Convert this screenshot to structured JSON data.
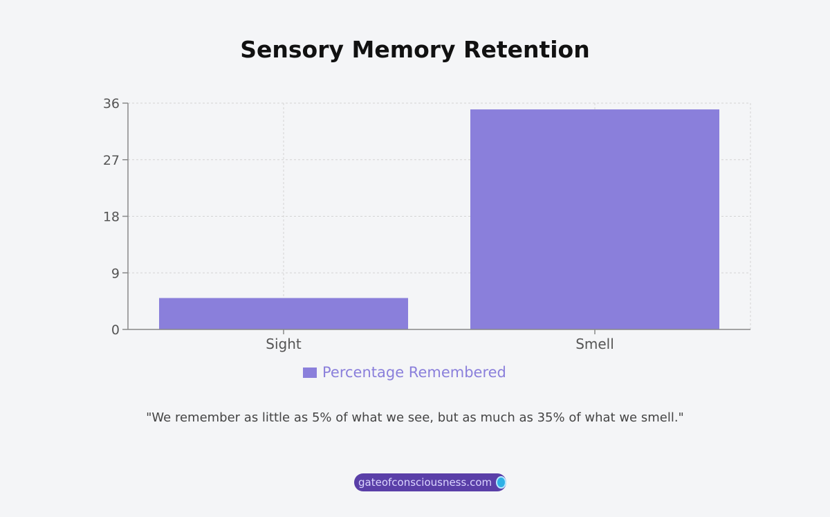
{
  "chart_data": {
    "type": "bar",
    "title": "Sensory Memory Retention",
    "categories": [
      "Sight",
      "Smell"
    ],
    "series": [
      {
        "name": "Percentage Remembered",
        "values": [
          5,
          35
        ],
        "color": "#8a7fdb"
      }
    ],
    "ylim": [
      0,
      36
    ],
    "yticks": [
      0,
      9,
      18,
      27,
      36
    ],
    "xlabel": "",
    "ylabel": "",
    "grid": true,
    "legend": "bottom-center"
  },
  "quote": "\"We remember as little as 5% of what we see, but as much as 35% of what we smell.\"",
  "watermark": {
    "text": "gateofconsciousness.com",
    "icon": "brain-circle-icon",
    "color": "#5a3fa8"
  }
}
